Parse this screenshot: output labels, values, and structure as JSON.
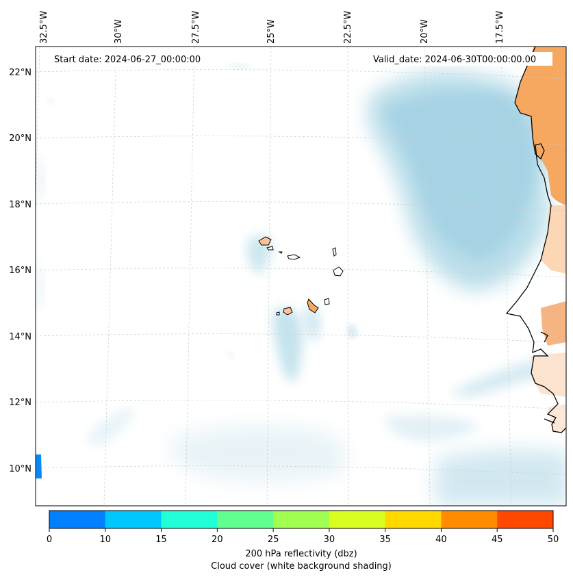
{
  "map": {
    "start_date": "Start date: 2024-06-27_00:00:00",
    "valid_date": "Valid_date: 2024-06-30T00:00:00.00",
    "lon_labels": [
      "32.5°W",
      "30°W",
      "27.5°W",
      "25°W",
      "22.5°W",
      "20°W",
      "17.5°W"
    ],
    "lat_labels": [
      "22°N",
      "20°N",
      "18°N",
      "16°N",
      "14°N",
      "12°N",
      "10°N"
    ],
    "colors": {
      "land": "#f6a860",
      "land_light": "#fbd7b6",
      "cloud": "#add8e6",
      "coast": "#000000",
      "grid": "#cccccc"
    }
  },
  "colorbar": {
    "ticks": [
      "0",
      "10",
      "15",
      "20",
      "25",
      "30",
      "35",
      "40",
      "45",
      "50"
    ],
    "colors": [
      "#0080ff",
      "#00c8ff",
      "#20ffd8",
      "#60ff90",
      "#a0ff50",
      "#d8ff20",
      "#ffd800",
      "#ff8c00",
      "#ff4800"
    ],
    "label_line1": "200 hPa reflectivity (dbz)",
    "label_line2": "Cloud cover (white background shading)"
  }
}
